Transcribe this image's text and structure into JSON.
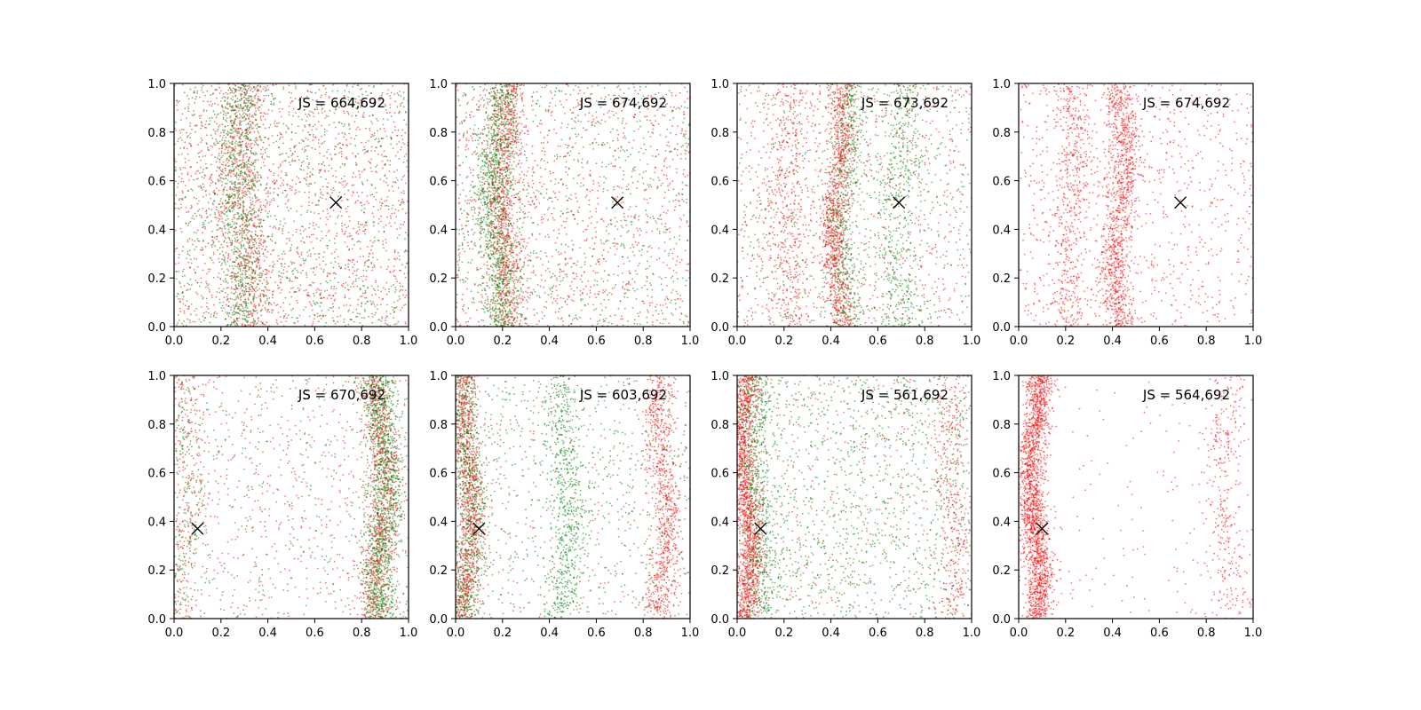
{
  "figure": {
    "background": "#ffffff",
    "colors": {
      "red_series": "#ff0000",
      "green_series": "#008000",
      "marker": "#000000"
    }
  },
  "chart_data": [
    {
      "type": "scatter",
      "annotation": "JS = 664,692",
      "xlim": [
        0,
        1
      ],
      "ylim": [
        0,
        1
      ],
      "xticks": [
        "0.0",
        "0.2",
        "0.4",
        "0.6",
        "0.8",
        "1.0"
      ],
      "yticks": [
        "0.0",
        "0.2",
        "0.4",
        "0.6",
        "0.8",
        "1.0"
      ],
      "marker": {
        "x": 0.69,
        "y": 0.51,
        "symbol": "x"
      },
      "grid": false,
      "series": [
        {
          "color": "#ff0000",
          "bands": [
            {
              "center": 0.3,
              "width": 0.055,
              "density": 0.32
            }
          ],
          "uniform": 0.68,
          "count": 2100
        },
        {
          "color": "#008000",
          "bands": [
            {
              "center": 0.28,
              "width": 0.05,
              "density": 0.45
            }
          ],
          "uniform": 0.55,
          "count": 1900
        }
      ]
    },
    {
      "type": "scatter",
      "annotation": "JS = 674,692",
      "xlim": [
        0,
        1
      ],
      "ylim": [
        0,
        1
      ],
      "xticks": [
        "0.0",
        "0.2",
        "0.4",
        "0.6",
        "0.8",
        "1.0"
      ],
      "yticks": [
        "0.0",
        "0.2",
        "0.4",
        "0.6",
        "0.8",
        "1.0"
      ],
      "marker": {
        "x": 0.69,
        "y": 0.51,
        "symbol": "x"
      },
      "grid": false,
      "series": [
        {
          "color": "#ff0000",
          "bands": [
            {
              "center": 0.21,
              "width": 0.035,
              "density": 0.45
            }
          ],
          "uniform": 0.55,
          "count": 2000
        },
        {
          "color": "#008000",
          "bands": [
            {
              "center": 0.18,
              "width": 0.04,
              "density": 0.55
            }
          ],
          "uniform": 0.45,
          "count": 2000
        }
      ]
    },
    {
      "type": "scatter",
      "annotation": "JS = 673,692",
      "xlim": [
        0,
        1
      ],
      "ylim": [
        0,
        1
      ],
      "xticks": [
        "0.0",
        "0.2",
        "0.4",
        "0.6",
        "0.8",
        "1.0"
      ],
      "yticks": [
        "0.0",
        "0.2",
        "0.4",
        "0.6",
        "0.8",
        "1.0"
      ],
      "marker": {
        "x": 0.69,
        "y": 0.51,
        "symbol": "x"
      },
      "grid": false,
      "series": [
        {
          "color": "#ff0000",
          "bands": [
            {
              "center": 0.43,
              "width": 0.03,
              "density": 0.45
            },
            {
              "center": 0.22,
              "width": 0.05,
              "density": 0.2
            }
          ],
          "uniform": 0.35,
          "count": 2200
        },
        {
          "color": "#008000",
          "bands": [
            {
              "center": 0.46,
              "width": 0.035,
              "density": 0.35
            },
            {
              "center": 0.69,
              "width": 0.05,
              "density": 0.3
            }
          ],
          "uniform": 0.35,
          "count": 1700
        }
      ]
    },
    {
      "type": "scatter",
      "annotation": "JS = 674,692",
      "xlim": [
        0,
        1
      ],
      "ylim": [
        0,
        1
      ],
      "xticks": [
        "0.0",
        "0.2",
        "0.4",
        "0.6",
        "0.8",
        "1.0"
      ],
      "yticks": [
        "0.0",
        "0.2",
        "0.4",
        "0.6",
        "0.8",
        "1.0"
      ],
      "marker": {
        "x": 0.69,
        "y": 0.51,
        "symbol": "x"
      },
      "grid": false,
      "series": [
        {
          "color": "#ff0000",
          "bands": [
            {
              "center": 0.43,
              "width": 0.035,
              "density": 0.45
            },
            {
              "center": 0.22,
              "width": 0.045,
              "density": 0.2
            }
          ],
          "uniform": 0.35,
          "count": 2400
        }
      ]
    },
    {
      "type": "scatter",
      "annotation": "JS = 670,692",
      "xlim": [
        0,
        1
      ],
      "ylim": [
        0,
        1
      ],
      "xticks": [
        "0.0",
        "0.2",
        "0.4",
        "0.6",
        "0.8",
        "1.0"
      ],
      "yticks": [
        "0.0",
        "0.2",
        "0.4",
        "0.6",
        "0.8",
        "1.0"
      ],
      "marker": {
        "x": 0.1,
        "y": 0.37,
        "symbol": "x"
      },
      "grid": false,
      "series": [
        {
          "color": "#ff0000",
          "bands": [
            {
              "center": 0.88,
              "width": 0.035,
              "density": 0.55
            },
            {
              "center": 0.05,
              "width": 0.04,
              "density": 0.15
            }
          ],
          "uniform": 0.3,
          "count": 1700
        },
        {
          "color": "#008000",
          "bands": [
            {
              "center": 0.89,
              "width": 0.04,
              "density": 0.7
            },
            {
              "center": 0.05,
              "width": 0.04,
              "density": 0.1
            }
          ],
          "uniform": 0.2,
          "count": 2000
        }
      ]
    },
    {
      "type": "scatter",
      "annotation": "JS = 603,692",
      "xlim": [
        0,
        1
      ],
      "ylim": [
        0,
        1
      ],
      "xticks": [
        "0.0",
        "0.2",
        "0.4",
        "0.6",
        "0.8",
        "1.0"
      ],
      "yticks": [
        "0.0",
        "0.2",
        "0.4",
        "0.6",
        "0.8",
        "1.0"
      ],
      "marker": {
        "x": 0.1,
        "y": 0.37,
        "symbol": "x"
      },
      "grid": false,
      "series": [
        {
          "color": "#ff0000",
          "bands": [
            {
              "center": 0.05,
              "width": 0.03,
              "density": 0.5
            },
            {
              "center": 0.88,
              "width": 0.035,
              "density": 0.4
            }
          ],
          "uniform": 0.1,
          "count": 2100
        },
        {
          "color": "#008000",
          "bands": [
            {
              "center": 0.05,
              "width": 0.035,
              "density": 0.35
            },
            {
              "center": 0.47,
              "width": 0.04,
              "density": 0.3
            }
          ],
          "uniform": 0.35,
          "count": 2200
        }
      ]
    },
    {
      "type": "scatter",
      "annotation": "JS = 561,692",
      "xlim": [
        0,
        1
      ],
      "ylim": [
        0,
        1
      ],
      "xticks": [
        "0.0",
        "0.2",
        "0.4",
        "0.6",
        "0.8",
        "1.0"
      ],
      "yticks": [
        "0.0",
        "0.2",
        "0.4",
        "0.6",
        "0.8",
        "1.0"
      ],
      "marker": {
        "x": 0.1,
        "y": 0.37,
        "symbol": "x"
      },
      "grid": false,
      "series": [
        {
          "color": "#ff0000",
          "bands": [
            {
              "center": 0.04,
              "width": 0.028,
              "density": 0.7
            },
            {
              "center": 0.92,
              "width": 0.035,
              "density": 0.15
            }
          ],
          "uniform": 0.15,
          "count": 2300
        },
        {
          "color": "#008000",
          "bands": [
            {
              "center": 0.09,
              "width": 0.04,
              "density": 0.3
            }
          ],
          "uniform": 0.7,
          "count": 2000
        }
      ]
    },
    {
      "type": "scatter",
      "annotation": "JS = 564,692",
      "xlim": [
        0,
        1
      ],
      "ylim": [
        0,
        1
      ],
      "xticks": [
        "0.0",
        "0.2",
        "0.4",
        "0.6",
        "0.8",
        "1.0"
      ],
      "yticks": [
        "0.0",
        "0.2",
        "0.4",
        "0.6",
        "0.8",
        "1.0"
      ],
      "marker": {
        "x": 0.1,
        "y": 0.37,
        "symbol": "x"
      },
      "grid": false,
      "series": [
        {
          "color": "#ff0000",
          "bands": [
            {
              "center": 0.07,
              "width": 0.03,
              "density": 0.78
            },
            {
              "center": 0.88,
              "width": 0.04,
              "density": 0.14
            }
          ],
          "uniform": 0.08,
          "count": 2400
        }
      ]
    }
  ]
}
